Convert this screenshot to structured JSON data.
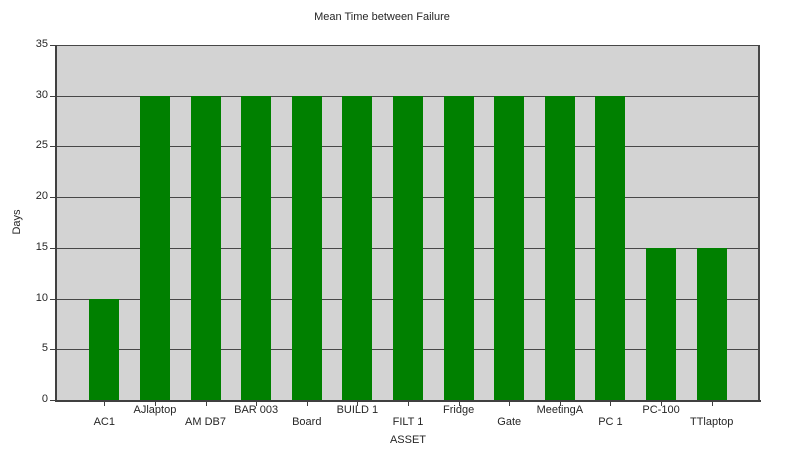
{
  "chart_data": {
    "type": "bar",
    "title": "Mean Time between Failure",
    "xlabel": "ASSET",
    "ylabel": "Days",
    "ylim": [
      0,
      35
    ],
    "ytick_step": 5,
    "ytick_labels": [
      "0",
      "5",
      "10",
      "15",
      "20",
      "25",
      "30",
      "35"
    ],
    "categories": [
      "AC1",
      "AJlaptop",
      "AM DB7",
      "BAR 003",
      "Board",
      "BUILD 1",
      "FILT 1",
      "Fridge",
      "Gate",
      "MeetingA",
      "PC 1",
      "PC-100",
      "TTlaptop"
    ],
    "values": [
      10,
      30,
      30,
      30,
      30,
      30,
      30,
      30,
      30,
      30,
      30,
      15,
      15
    ],
    "legend": "none",
    "grid": "horizontal",
    "label_stagger": "odd-indices-upper-row",
    "colors": {
      "bar": "#008000",
      "plot_background": "#d3d3d3",
      "gridline": "#474747",
      "axis": "#404040",
      "text": "#262626",
      "page_background": "#ffffff"
    }
  }
}
